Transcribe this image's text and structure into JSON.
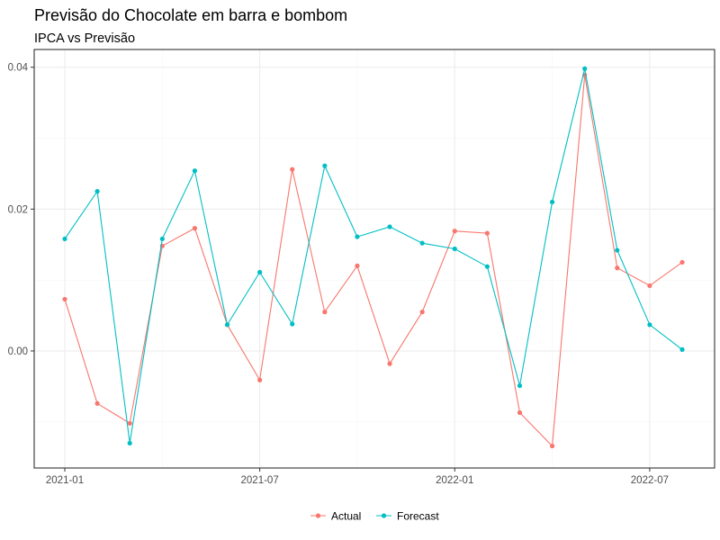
{
  "chart_data": {
    "type": "line",
    "title": "Previsão do Chocolate em barra e bombom",
    "subtitle": "IPCA vs Previsão",
    "xlabel": "",
    "ylabel": "",
    "x": [
      "2021-01",
      "2021-02",
      "2021-03",
      "2021-04",
      "2021-05",
      "2021-06",
      "2021-07",
      "2021-08",
      "2021-09",
      "2021-10",
      "2021-11",
      "2021-12",
      "2022-01",
      "2022-02",
      "2022-03",
      "2022-04",
      "2022-05",
      "2022-06",
      "2022-07",
      "2022-08"
    ],
    "x_ticks": [
      "2021-01",
      "2021-07",
      "2022-01",
      "2022-07"
    ],
    "y_ticks": [
      "0.00",
      "0.02",
      "0.04"
    ],
    "ylim": [
      -0.0165,
      0.0425
    ],
    "grid": true,
    "legend_position": "bottom",
    "series": [
      {
        "name": "Actual",
        "color": "#F8766D",
        "values": [
          0.0073,
          -0.0074,
          -0.0102,
          0.0148,
          0.0173,
          0.0037,
          -0.0041,
          0.0256,
          0.0055,
          0.012,
          -0.0018,
          0.0055,
          0.0169,
          0.0166,
          -0.0087,
          -0.0134,
          0.0389,
          0.0117,
          0.0092,
          0.0125
        ]
      },
      {
        "name": "Forecast",
        "color": "#00BFC4",
        "values": [
          0.0158,
          0.0225,
          -0.013,
          0.0158,
          0.0254,
          0.0037,
          0.0111,
          0.0038,
          0.0261,
          0.0161,
          0.0175,
          0.0152,
          0.0144,
          0.0119,
          -0.0049,
          0.021,
          0.0398,
          0.0142,
          0.0037,
          0.0002
        ]
      }
    ]
  }
}
